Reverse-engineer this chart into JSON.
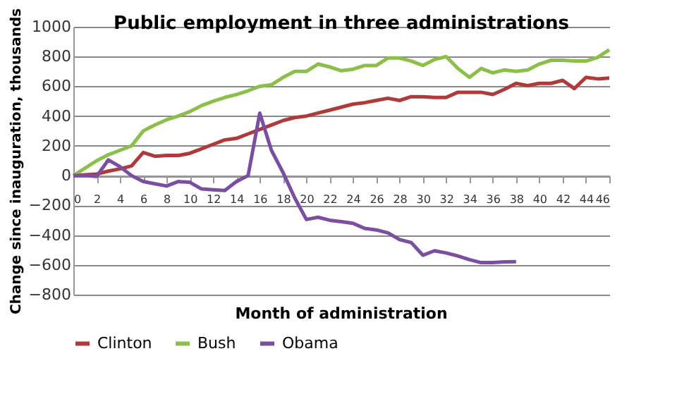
{
  "chart_data": {
    "type": "line",
    "title": "Public employment in three administrations",
    "xlabel": "Month of administration",
    "ylabel": "Change since inauguration, thousands",
    "x": [
      0,
      1,
      2,
      3,
      4,
      5,
      6,
      7,
      8,
      9,
      10,
      11,
      12,
      13,
      14,
      15,
      16,
      17,
      18,
      19,
      20,
      21,
      22,
      23,
      24,
      25,
      26,
      27,
      28,
      29,
      30,
      31,
      32,
      33,
      34,
      35,
      36,
      37,
      38,
      39,
      40,
      41,
      42,
      43,
      44,
      45,
      46
    ],
    "series": [
      {
        "name": "Clinton",
        "color": "#b03a3a",
        "values": [
          0,
          5,
          10,
          30,
          45,
          65,
          155,
          130,
          135,
          135,
          150,
          180,
          210,
          240,
          250,
          280,
          310,
          340,
          370,
          390,
          400,
          420,
          440,
          460,
          480,
          490,
          505,
          520,
          505,
          530,
          530,
          525,
          525,
          560,
          560,
          560,
          545,
          580,
          620,
          605,
          620,
          620,
          640,
          585,
          660,
          650,
          655
        ]
      },
      {
        "name": "Bush",
        "color": "#8cbf4a",
        "values": [
          0,
          50,
          100,
          140,
          170,
          200,
          300,
          340,
          375,
          400,
          430,
          470,
          500,
          525,
          545,
          570,
          600,
          610,
          660,
          700,
          700,
          750,
          730,
          705,
          715,
          740,
          740,
          790,
          790,
          770,
          740,
          780,
          800,
          720,
          660,
          720,
          690,
          710,
          700,
          710,
          750,
          775,
          775,
          770,
          770,
          795,
          845
        ]
      },
      {
        "name": "Obama",
        "color": "#7a4ea0",
        "values": [
          0,
          0,
          -5,
          105,
          60,
          0,
          -40,
          -55,
          -70,
          -40,
          -45,
          -90,
          -95,
          -100,
          -40,
          0,
          420,
          170,
          20,
          -150,
          -295,
          -280,
          -300,
          -310,
          -320,
          -355,
          -365,
          -385,
          -430,
          -450,
          -535,
          -505,
          -520,
          -540,
          -565,
          -585,
          -585,
          -580,
          -578,
          null,
          null,
          null,
          null,
          null,
          null,
          null,
          null
        ]
      }
    ],
    "xlim": [
      0,
      46
    ],
    "xticks": [
      0,
      2,
      4,
      6,
      8,
      10,
      12,
      14,
      16,
      18,
      20,
      22,
      24,
      26,
      28,
      30,
      32,
      34,
      36,
      38,
      40,
      42,
      44,
      46
    ],
    "ylim": [
      -800,
      1000
    ],
    "yticks": [
      -800,
      -600,
      -400,
      -200,
      0,
      200,
      400,
      600,
      800,
      1000
    ],
    "grid": "y",
    "legend": "bottom",
    "line_style": "solid",
    "marker": "none"
  }
}
